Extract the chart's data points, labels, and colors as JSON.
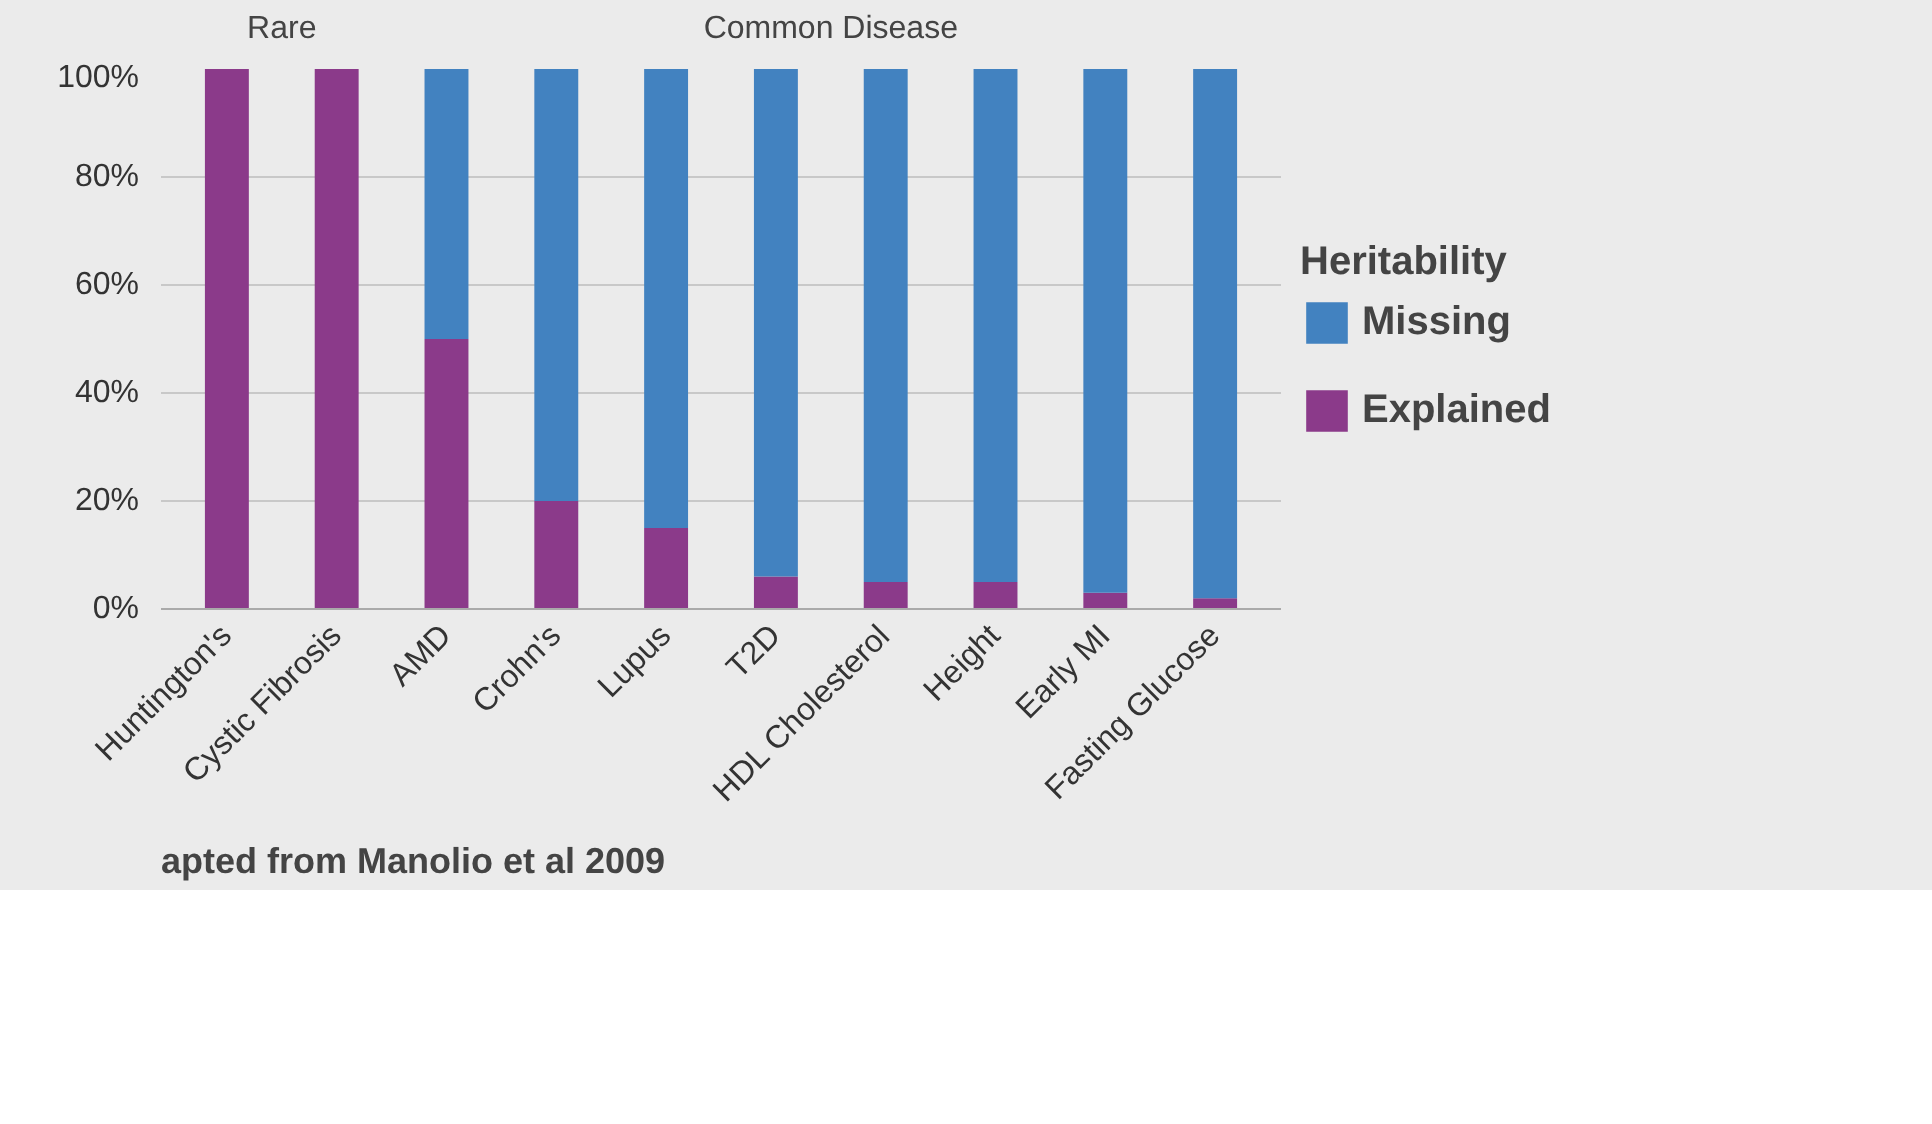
{
  "chart_data": {
    "type": "bar",
    "stacked": true,
    "categories": [
      "Huntington's",
      "Cystic Fibrosis",
      "AMD",
      "Crohn's",
      "Lupus",
      "T2D",
      "HDL Cholesterol",
      "Height",
      "Early MI",
      "Fasting Glucose"
    ],
    "series": [
      {
        "name": "Explained",
        "color": "#8b3a8a",
        "values": [
          100,
          100,
          50,
          20,
          15,
          6,
          5,
          5,
          3,
          2
        ]
      },
      {
        "name": "Missing",
        "color": "#4282c0",
        "values": [
          0,
          0,
          50,
          80,
          85,
          94,
          95,
          95,
          97,
          98
        ]
      }
    ],
    "ylim": [
      0,
      100
    ],
    "yticks": [
      {
        "value": 0,
        "label": "0%"
      },
      {
        "value": 20,
        "label": "20%"
      },
      {
        "value": 40,
        "label": "40%"
      },
      {
        "value": 60,
        "label": "60%"
      },
      {
        "value": 80,
        "label": "80%"
      },
      {
        "value": 100,
        "label": "100%"
      }
    ],
    "grid": "y",
    "legend": "right",
    "legend_title": "Heritability",
    "annotations": [
      "Rare",
      "Common Disease",
      "apted from Manolio et al 2009"
    ]
  }
}
